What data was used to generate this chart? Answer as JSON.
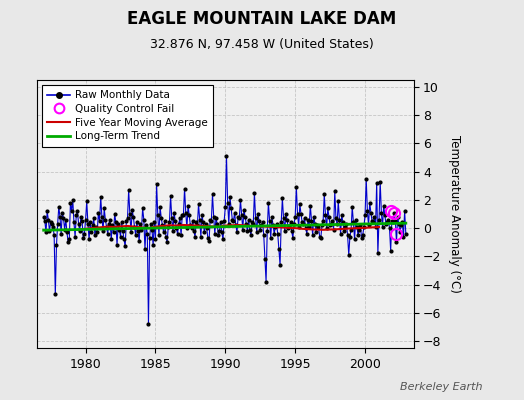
{
  "title": "EAGLE MOUNTAIN LAKE DAM",
  "subtitle": "32.876 N, 97.458 W (United States)",
  "ylabel": "Temperature Anomaly (°C)",
  "watermark": "Berkeley Earth",
  "ylim": [
    -8.5,
    10.5
  ],
  "xlim": [
    1976.5,
    2003.5
  ],
  "yticks": [
    -8,
    -6,
    -4,
    -2,
    0,
    2,
    4,
    6,
    8,
    10
  ],
  "xticks": [
    1980,
    1985,
    1990,
    1995,
    2000
  ],
  "fig_bg_color": "#e8e8e8",
  "plot_bg_color": "#f0f0f0",
  "raw_color": "#0000cc",
  "ma_color": "#cc0000",
  "trend_color": "#00aa00",
  "qc_color": "#ff00ff",
  "raw_data": {
    "years": [
      1977.0,
      1977.083,
      1977.167,
      1977.25,
      1977.333,
      1977.417,
      1977.5,
      1977.583,
      1977.667,
      1977.75,
      1977.833,
      1977.917,
      1978.0,
      1978.083,
      1978.167,
      1978.25,
      1978.333,
      1978.417,
      1978.5,
      1978.583,
      1978.667,
      1978.75,
      1978.833,
      1978.917,
      1979.0,
      1979.083,
      1979.167,
      1979.25,
      1979.333,
      1979.417,
      1979.5,
      1979.583,
      1979.667,
      1979.75,
      1979.833,
      1979.917,
      1980.0,
      1980.083,
      1980.167,
      1980.25,
      1980.333,
      1980.417,
      1980.5,
      1980.583,
      1980.667,
      1980.75,
      1980.833,
      1980.917,
      1981.0,
      1981.083,
      1981.167,
      1981.25,
      1981.333,
      1981.417,
      1981.5,
      1981.583,
      1981.667,
      1981.75,
      1981.833,
      1981.917,
      1982.0,
      1982.083,
      1982.167,
      1982.25,
      1982.333,
      1982.417,
      1982.5,
      1982.583,
      1982.667,
      1982.75,
      1982.833,
      1982.917,
      1983.0,
      1983.083,
      1983.167,
      1983.25,
      1983.333,
      1983.417,
      1983.5,
      1983.583,
      1983.667,
      1983.75,
      1983.833,
      1983.917,
      1984.0,
      1984.083,
      1984.167,
      1984.25,
      1984.333,
      1984.417,
      1984.5,
      1984.583,
      1984.667,
      1984.75,
      1984.833,
      1984.917,
      1985.0,
      1985.083,
      1985.167,
      1985.25,
      1985.333,
      1985.417,
      1985.5,
      1985.583,
      1985.667,
      1985.75,
      1985.833,
      1985.917,
      1986.0,
      1986.083,
      1986.167,
      1986.25,
      1986.333,
      1986.417,
      1986.5,
      1986.583,
      1986.667,
      1986.75,
      1986.833,
      1986.917,
      1987.0,
      1987.083,
      1987.167,
      1987.25,
      1987.333,
      1987.417,
      1987.5,
      1987.583,
      1987.667,
      1987.75,
      1987.833,
      1987.917,
      1988.0,
      1988.083,
      1988.167,
      1988.25,
      1988.333,
      1988.417,
      1988.5,
      1988.583,
      1988.667,
      1988.75,
      1988.833,
      1988.917,
      1989.0,
      1989.083,
      1989.167,
      1989.25,
      1989.333,
      1989.417,
      1989.5,
      1989.583,
      1989.667,
      1989.75,
      1989.833,
      1989.917,
      1990.0,
      1990.083,
      1990.167,
      1990.25,
      1990.333,
      1990.417,
      1990.5,
      1990.583,
      1990.667,
      1990.75,
      1990.833,
      1990.917,
      1991.0,
      1991.083,
      1991.167,
      1991.25,
      1991.333,
      1991.417,
      1991.5,
      1991.583,
      1991.667,
      1991.75,
      1991.833,
      1991.917,
      1992.0,
      1992.083,
      1992.167,
      1992.25,
      1992.333,
      1992.417,
      1992.5,
      1992.583,
      1992.667,
      1992.75,
      1992.833,
      1992.917,
      1993.0,
      1993.083,
      1993.167,
      1993.25,
      1993.333,
      1993.417,
      1993.5,
      1993.583,
      1993.667,
      1993.75,
      1993.833,
      1993.917,
      1994.0,
      1994.083,
      1994.167,
      1994.25,
      1994.333,
      1994.417,
      1994.5,
      1994.583,
      1994.667,
      1994.75,
      1994.833,
      1994.917,
      1995.0,
      1995.083,
      1995.167,
      1995.25,
      1995.333,
      1995.417,
      1995.5,
      1995.583,
      1995.667,
      1995.75,
      1995.833,
      1995.917,
      1996.0,
      1996.083,
      1996.167,
      1996.25,
      1996.333,
      1996.417,
      1996.5,
      1996.583,
      1996.667,
      1996.75,
      1996.833,
      1996.917,
      1997.0,
      1997.083,
      1997.167,
      1997.25,
      1997.333,
      1997.417,
      1997.5,
      1997.583,
      1997.667,
      1997.75,
      1997.833,
      1997.917,
      1998.0,
      1998.083,
      1998.167,
      1998.25,
      1998.333,
      1998.417,
      1998.5,
      1998.583,
      1998.667,
      1998.75,
      1998.833,
      1998.917,
      1999.0,
      1999.083,
      1999.167,
      1999.25,
      1999.333,
      1999.417,
      1999.5,
      1999.583,
      1999.667,
      1999.75,
      1999.833,
      1999.917,
      2000.0,
      2000.083,
      2000.167,
      2000.25,
      2000.333,
      2000.417,
      2000.5,
      2000.583,
      2000.667,
      2000.75,
      2000.833,
      2000.917,
      2001.0,
      2001.083,
      2001.167,
      2001.25,
      2001.333,
      2001.417,
      2001.5,
      2001.583,
      2001.667,
      2001.75,
      2001.833,
      2001.917,
      2002.0,
      2002.083,
      2002.167,
      2002.25,
      2002.333,
      2002.417,
      2002.5,
      2002.583,
      2002.667,
      2002.75,
      2002.833,
      2002.917
    ],
    "values": [
      0.8,
      0.5,
      -0.3,
      1.2,
      0.6,
      -0.2,
      0.4,
      0.3,
      0.1,
      -0.5,
      -4.7,
      -1.2,
      0.3,
      1.5,
      0.8,
      -0.4,
      1.1,
      0.7,
      -0.1,
      0.6,
      -0.3,
      -1.0,
      -0.8,
      1.8,
      1.2,
      2.0,
      0.4,
      -0.6,
      0.9,
      1.2,
      0.3,
      -0.2,
      0.8,
      0.5,
      -0.7,
      -0.4,
      0.6,
      1.9,
      0.3,
      -0.8,
      0.4,
      -0.3,
      0.2,
      0.7,
      -0.5,
      0.1,
      -0.3,
      1.1,
      0.5,
      2.2,
      0.8,
      -0.2,
      1.4,
      0.6,
      0.1,
      -0.4,
      0.3,
      0.6,
      -0.8,
      0.2,
      -0.3,
      1.0,
      0.4,
      -1.2,
      0.3,
      -0.1,
      -0.6,
      0.4,
      -0.2,
      -0.8,
      -1.3,
      0.5,
      0.7,
      2.7,
      1.0,
      -0.3,
      1.3,
      0.8,
      0.1,
      -0.5,
      0.4,
      -0.2,
      -0.9,
      0.3,
      -0.1,
      1.4,
      0.6,
      -1.5,
      0.2,
      -0.4,
      -6.8,
      -0.7,
      0.3,
      -0.1,
      -1.2,
      0.4,
      -0.8,
      3.1,
      0.9,
      -0.5,
      1.5,
      0.7,
      0.2,
      -0.3,
      0.5,
      -0.6,
      -1.0,
      0.1,
      0.4,
      2.3,
      0.7,
      -0.2,
      1.1,
      0.5,
      0.0,
      -0.4,
      0.3,
      0.7,
      -0.5,
      0.9,
      0.9,
      2.8,
      1.1,
      0.0,
      1.6,
      0.9,
      0.2,
      0.0,
      0.5,
      -0.2,
      -0.6,
      0.4,
      0.2,
      1.7,
      0.6,
      -0.6,
      0.9,
      0.4,
      -0.3,
      0.3,
      0.0,
      -0.7,
      -0.9,
      0.6,
      0.5,
      2.4,
      0.8,
      -0.4,
      0.7,
      0.3,
      -0.5,
      -0.2,
      0.4,
      -0.3,
      -0.8,
      0.5,
      1.5,
      5.1,
      1.8,
      0.3,
      2.2,
      1.4,
      0.6,
      0.5,
      1.1,
      0.2,
      -0.3,
      0.8,
      0.7,
      2.0,
      0.9,
      -0.1,
      1.3,
      0.8,
      0.3,
      -0.2,
      0.6,
      -0.1,
      -0.5,
      0.4,
      0.3,
      2.5,
      0.7,
      -0.3,
      1.0,
      0.5,
      -0.1,
      0.2,
      0.4,
      -0.5,
      -2.2,
      -3.8,
      -0.2,
      1.8,
      0.5,
      -0.7,
      0.8,
      0.2,
      -0.4,
      0.1,
      0.3,
      -0.4,
      -1.5,
      -2.6,
      0.4,
      2.1,
      0.7,
      -0.2,
      1.0,
      0.6,
      0.0,
      0.1,
      0.4,
      -0.2,
      -0.7,
      0.3,
      0.8,
      2.9,
      1.0,
      0.1,
      1.7,
      1.0,
      0.4,
      0.3,
      0.7,
      0.0,
      -0.4,
      0.6,
      0.1,
      1.6,
      0.5,
      -0.5,
      0.8,
      0.3,
      -0.3,
      0.2,
      0.1,
      -0.6,
      -0.7,
      0.2,
      0.5,
      2.4,
      0.9,
      0.0,
      1.4,
      0.8,
      0.2,
      0.3,
      0.5,
      -0.1,
      2.6,
      0.7,
      0.3,
      1.9,
      0.6,
      -0.4,
      0.9,
      0.4,
      -0.2,
      0.1,
      0.3,
      -0.5,
      -1.9,
      -0.6,
      -0.1,
      1.5,
      0.4,
      -0.8,
      0.6,
      0.1,
      -0.5,
      -0.1,
      0.2,
      -0.7,
      -0.5,
      0.1,
      0.9,
      3.5,
      1.2,
      0.2,
      1.8,
      1.1,
      0.5,
      0.4,
      0.8,
      0.1,
      3.2,
      -1.8,
      0.6,
      3.3,
      1.1,
      0.1,
      1.6,
      0.9,
      0.3,
      0.4,
      0.6,
      0.0,
      -1.6,
      0.5,
      0.4,
      1.1,
      0.5,
      -1.0,
      0.8,
      0.3,
      -0.3,
      0.2,
      0.4,
      -0.6,
      1.2,
      -0.4
    ]
  },
  "qc_fail_points": {
    "years": [
      2001.833,
      2002.083,
      2002.25
    ],
    "values": [
      1.2,
      1.1,
      -0.4
    ]
  },
  "moving_avg": {
    "years": [
      1979.5,
      1980.0,
      1980.5,
      1981.0,
      1981.5,
      1982.0,
      1982.5,
      1983.0,
      1983.5,
      1984.0,
      1984.5,
      1985.0,
      1985.5,
      1986.0,
      1986.5,
      1987.0,
      1987.5,
      1988.0,
      1988.5,
      1989.0,
      1989.5,
      1990.0,
      1990.5,
      1991.0,
      1991.5,
      1992.0,
      1992.5,
      1993.0,
      1993.5,
      1994.0,
      1994.5,
      1995.0,
      1995.5,
      1996.0,
      1996.5,
      1997.0,
      1997.5,
      1998.0,
      1998.5,
      1999.0,
      1999.5,
      2000.0,
      2000.5,
      2001.0
    ],
    "values": [
      -0.1,
      -0.05,
      0.0,
      0.05,
      0.1,
      0.08,
      0.12,
      0.15,
      0.1,
      0.05,
      0.0,
      0.1,
      0.15,
      0.2,
      0.18,
      0.22,
      0.2,
      0.18,
      0.15,
      0.12,
      0.1,
      0.18,
      0.2,
      0.22,
      0.18,
      0.15,
      0.12,
      0.1,
      0.08,
      0.05,
      0.02,
      0.0,
      -0.05,
      -0.08,
      -0.1,
      -0.12,
      -0.1,
      -0.08,
      -0.05,
      -0.02,
      0.0,
      0.02,
      0.05,
      0.08
    ]
  },
  "trend": {
    "years": [
      1977.0,
      2002.917
    ],
    "values": [
      -0.15,
      0.35
    ]
  }
}
